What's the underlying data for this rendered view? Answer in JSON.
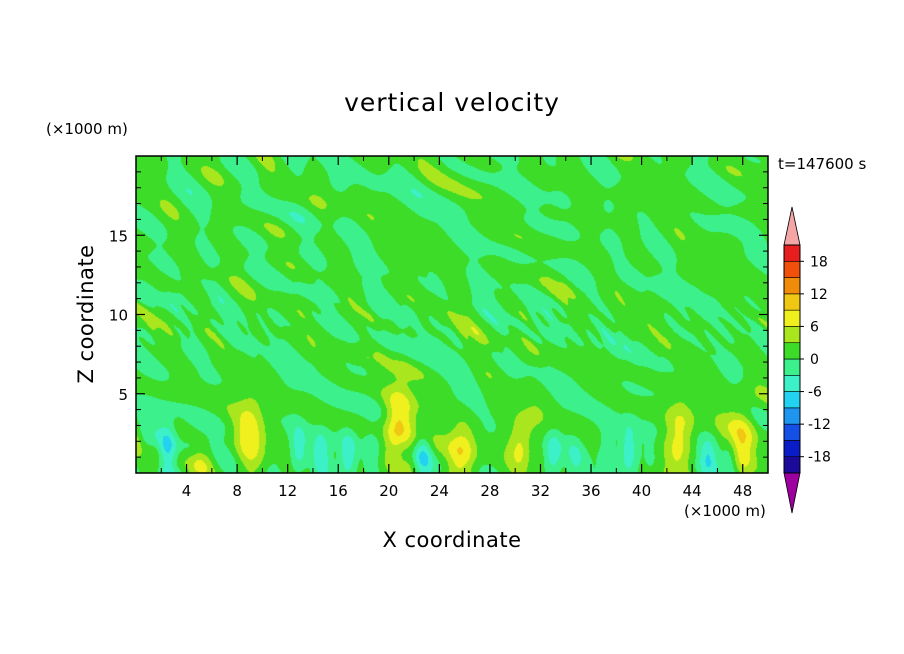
{
  "chart_data": {
    "type": "heatmap",
    "title": "vertical velocity",
    "xlabel": "X coordinate",
    "ylabel": "Z coordinate",
    "x_unit_label": "(×1000 m)",
    "y_unit_label": "(×1000 m)",
    "time_label": "t=147600 s",
    "xlim": [
      0,
      50
    ],
    "ylim": [
      0,
      20
    ],
    "x_ticks": [
      4,
      8,
      12,
      16,
      20,
      24,
      28,
      32,
      36,
      40,
      44,
      48
    ],
    "y_ticks": [
      5,
      10,
      15
    ],
    "colorbar": {
      "levels": [
        -21,
        -18,
        -15,
        -12,
        -9,
        -6,
        -3,
        0,
        3,
        6,
        9,
        12,
        15,
        18,
        21
      ],
      "tick_labels": [
        "18",
        "12",
        "6",
        "0",
        "-6",
        "-12",
        "-18"
      ],
      "tick_values": [
        18,
        12,
        6,
        0,
        -6,
        -12,
        -18
      ],
      "colors": [
        "#4b0082",
        "#1c0a9a",
        "#0a1cc8",
        "#1450e6",
        "#1e96f0",
        "#22d2f0",
        "#3cf0c8",
        "#3cf08c",
        "#3cdc28",
        "#aae61e",
        "#f0f01e",
        "#f0c814",
        "#f08c0a",
        "#f0500a",
        "#e61e1e",
        "#f0a0a0"
      ],
      "under_color": "#9e00a0",
      "over_color": "#f4a6a6"
    },
    "background_level_color": "#2cf08a",
    "updrafts": [
      {
        "x": 5.2,
        "z_top": 1.6,
        "peak": 3
      },
      {
        "x": 9.0,
        "z_top": 4.8,
        "peak": 6
      },
      {
        "x": 20.8,
        "z_top": 5.2,
        "peak": 9
      },
      {
        "x": 25.8,
        "z_top": 3.2,
        "peak": 6
      },
      {
        "x": 30.5,
        "z_top": 3.6,
        "peak": 6
      },
      {
        "x": 43.0,
        "z_top": 4.4,
        "peak": 6
      },
      {
        "x": 48.0,
        "z_top": 4.6,
        "peak": 6
      }
    ],
    "downdrafts": [
      {
        "x": 2.0,
        "z_top": 2.8,
        "trough": -3
      },
      {
        "x": 13.5,
        "z_top": 2.6,
        "trough": -3
      },
      {
        "x": 17.0,
        "z_top": 2.4,
        "trough": -3
      },
      {
        "x": 22.0,
        "z_top": 2.2,
        "trough": -3
      },
      {
        "x": 33.0,
        "z_top": 2.4,
        "trough": -3
      },
      {
        "x": 38.5,
        "z_top": 2.8,
        "trough": -3
      },
      {
        "x": 46.0,
        "z_top": 2.0,
        "trough": -3
      }
    ]
  }
}
